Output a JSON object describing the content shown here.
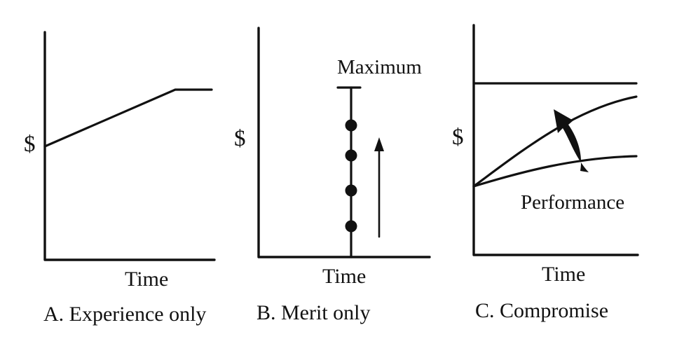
{
  "panels": [
    {
      "y_label": "$",
      "x_label": "Time",
      "caption": "A. Experience only"
    },
    {
      "y_label": "$",
      "x_label": "Time",
      "caption": "B. Merit only",
      "max_label": "Maximum"
    },
    {
      "y_label": "$",
      "x_label": "Time",
      "caption": "C. Compromise",
      "arrow_label": "Performance"
    }
  ]
}
